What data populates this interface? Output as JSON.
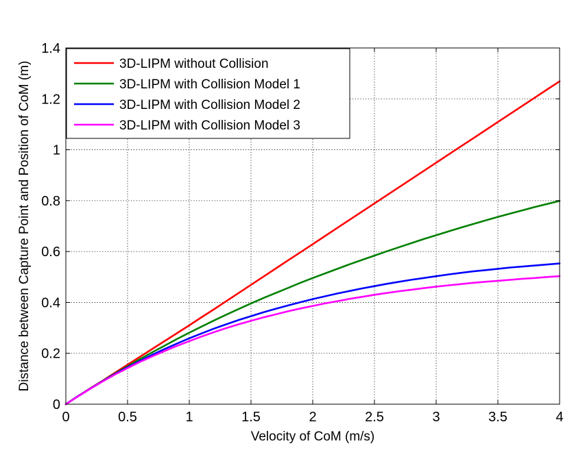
{
  "chart_data": {
    "type": "line",
    "title": "",
    "xlabel": "Velocity of CoM (m/s)",
    "ylabel": "Distance between Capture Point and Position of CoM (m)",
    "xlim": [
      0,
      4
    ],
    "ylim": [
      0,
      1.4
    ],
    "grid": true,
    "legend_position": "top-left",
    "x_ticks": [
      "0",
      "0.5",
      "1",
      "1.5",
      "2",
      "2.5",
      "3",
      "3.5",
      "4"
    ],
    "y_ticks": [
      "0",
      "0.2",
      "0.4",
      "0.6",
      "0.8",
      "1",
      "1.2",
      "1.4"
    ],
    "x": [
      0,
      0.1,
      0.2,
      0.3,
      0.4,
      0.5,
      0.6,
      0.7,
      0.8,
      0.9,
      1.0,
      1.1,
      1.2,
      1.3,
      1.4,
      1.5,
      1.6,
      1.7,
      1.8,
      1.9,
      2.0,
      2.1,
      2.2,
      2.3,
      2.4,
      2.5,
      2.6,
      2.7,
      2.8,
      2.9,
      3.0,
      3.1,
      3.2,
      3.3,
      3.4,
      3.5,
      3.6,
      3.7,
      3.8,
      3.9,
      4.0
    ],
    "series": [
      {
        "name": "3D-LIPM without Collision",
        "color": "#ff0000",
        "values": [
          0.0,
          0.032,
          0.063,
          0.093,
          0.124,
          0.155,
          0.186,
          0.217,
          0.248,
          0.279,
          0.31,
          0.342,
          0.373,
          0.405,
          0.437,
          0.469,
          0.501,
          0.533,
          0.565,
          0.597,
          0.629,
          0.661,
          0.693,
          0.725,
          0.757,
          0.789,
          0.821,
          0.853,
          0.885,
          0.917,
          0.949,
          0.981,
          1.013,
          1.045,
          1.077,
          1.109,
          1.141,
          1.173,
          1.205,
          1.237,
          1.269
        ]
      },
      {
        "name": "3D-LIPM with Collision Model 1",
        "color": "#008000",
        "values": [
          0.0,
          0.032,
          0.062,
          0.092,
          0.121,
          0.149,
          0.177,
          0.204,
          0.23,
          0.256,
          0.281,
          0.305,
          0.329,
          0.352,
          0.374,
          0.396,
          0.417,
          0.437,
          0.457,
          0.477,
          0.496,
          0.514,
          0.532,
          0.55,
          0.567,
          0.584,
          0.601,
          0.617,
          0.633,
          0.649,
          0.664,
          0.679,
          0.694,
          0.708,
          0.722,
          0.736,
          0.749,
          0.762,
          0.775,
          0.787,
          0.799
        ]
      },
      {
        "name": "3D-LIPM with Collision Model 2",
        "color": "#0000ff",
        "values": [
          0.0,
          0.032,
          0.062,
          0.091,
          0.119,
          0.145,
          0.17,
          0.194,
          0.217,
          0.238,
          0.259,
          0.278,
          0.297,
          0.314,
          0.331,
          0.346,
          0.361,
          0.375,
          0.388,
          0.401,
          0.413,
          0.424,
          0.435,
          0.445,
          0.455,
          0.464,
          0.473,
          0.481,
          0.489,
          0.496,
          0.503,
          0.51,
          0.516,
          0.522,
          0.527,
          0.532,
          0.537,
          0.541,
          0.545,
          0.549,
          0.553
        ]
      },
      {
        "name": "3D-LIPM with Collision Model 3",
        "color": "#ff00ff",
        "values": [
          0.0,
          0.031,
          0.061,
          0.09,
          0.117,
          0.142,
          0.166,
          0.188,
          0.209,
          0.229,
          0.248,
          0.266,
          0.283,
          0.299,
          0.314,
          0.328,
          0.341,
          0.353,
          0.365,
          0.376,
          0.386,
          0.396,
          0.405,
          0.414,
          0.422,
          0.43,
          0.437,
          0.444,
          0.45,
          0.456,
          0.462,
          0.467,
          0.472,
          0.477,
          0.481,
          0.485,
          0.489,
          0.493,
          0.496,
          0.5,
          0.503
        ]
      }
    ]
  }
}
